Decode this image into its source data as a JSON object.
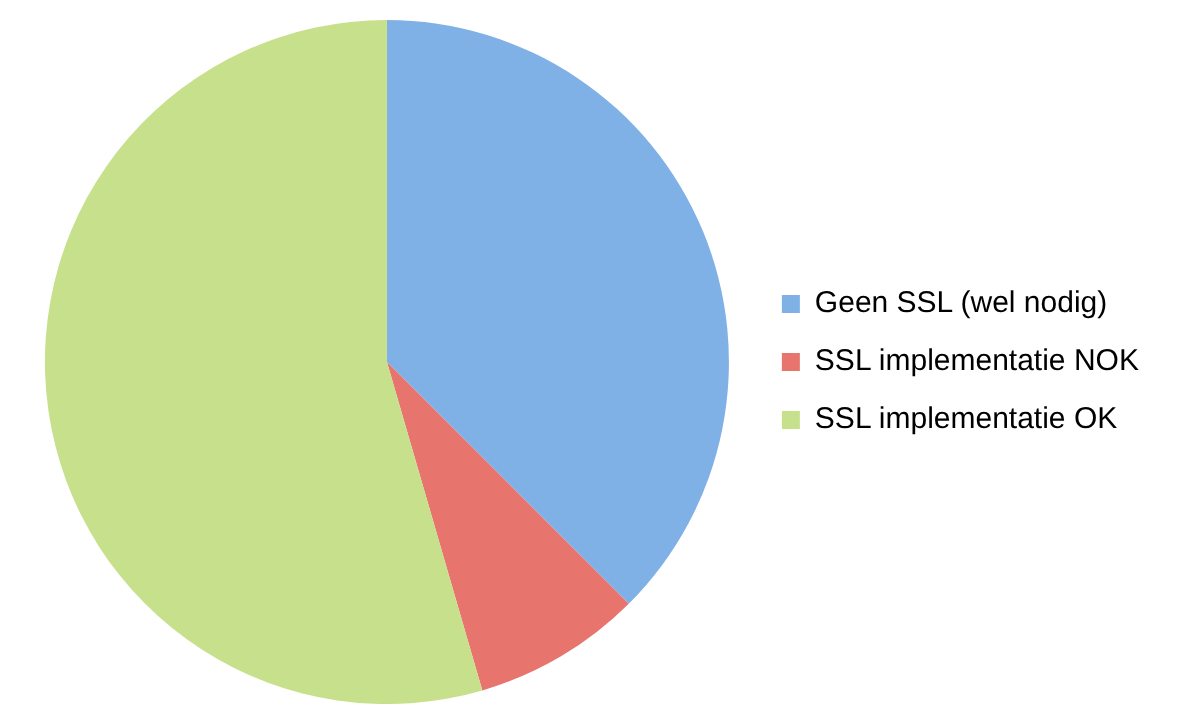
{
  "chart_data": {
    "type": "pie",
    "categories": [
      "Geen SSL (wel nodig)",
      "SSL implementatie NOK",
      "SSL implementatie OK"
    ],
    "values": [
      37.5,
      8,
      54.5
    ],
    "colors": [
      "#7fb0e6",
      "#e8746e",
      "#c6e08c"
    ],
    "legend": "right"
  }
}
